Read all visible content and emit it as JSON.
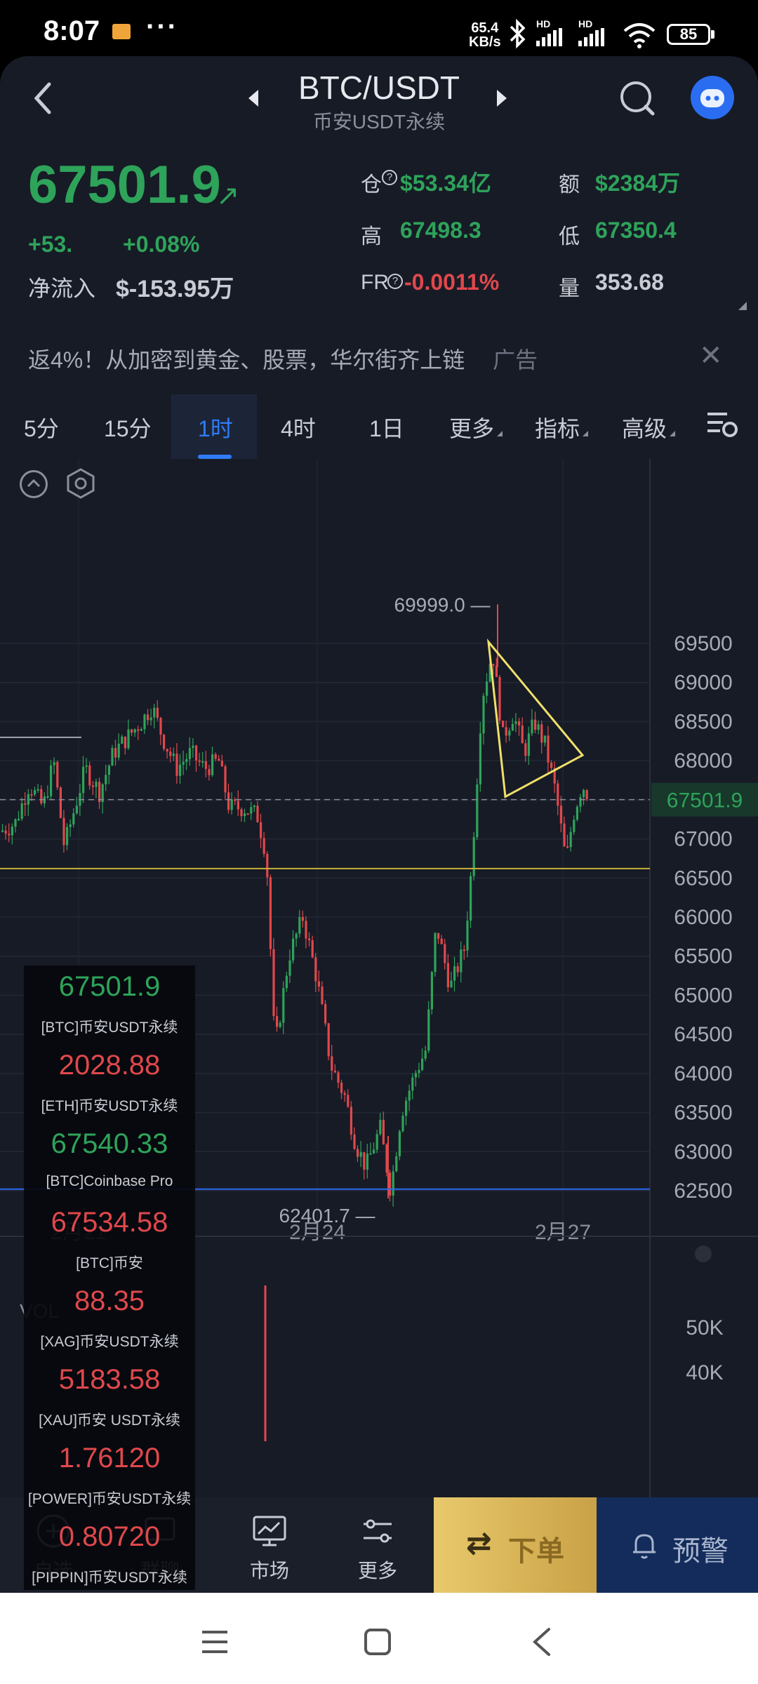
{
  "status_bar": {
    "time": "8:07",
    "more": "···",
    "net_speed_value": "65.4",
    "net_speed_unit": "KB/s",
    "sim1": "HD",
    "sim2": "HD",
    "battery": "85"
  },
  "header": {
    "pair": "BTC/USDT",
    "market": "币安USDT永续"
  },
  "price": {
    "last": "67501.9",
    "change": "+53.",
    "change_pct": "+0.08%",
    "inflow_label": "净流入",
    "inflow_value": "$-153.95万"
  },
  "stats": {
    "oi_label": "仓",
    "oi_value": "$53.34亿",
    "amount_label": "额",
    "amount_value": "$2384万",
    "high_label": "高",
    "high_value": "67498.3",
    "low_label": "低",
    "low_value": "67350.4",
    "fr_label": "FR",
    "fr_value": "-0.0011%",
    "vol_label": "量",
    "vol_value": "353.68"
  },
  "ad": {
    "text": "返4%！从加密到黄金、股票，华尔街齐上链",
    "tag": "广告"
  },
  "intervals": {
    "items": [
      "5分",
      "15分",
      "1时",
      "4时",
      "1日"
    ],
    "active": "1时",
    "more": "更多",
    "indicators": "指标",
    "advanced": "高级"
  },
  "chart_data": {
    "type": "candlestick",
    "interval": "1时",
    "y_ticks": [
      "69500",
      "69000",
      "68500",
      "68000",
      "67500",
      "67000",
      "66500",
      "66000",
      "65500",
      "65000",
      "64500",
      "64000",
      "63500",
      "63000",
      "62500"
    ],
    "ylim": [
      62300,
      70200
    ],
    "x_ticks": [
      "2月21",
      "2月24",
      "2月27"
    ],
    "current_price": "67501.9",
    "max_label": "69999.0",
    "min_label": "62401.7",
    "horizontal_lines": [
      66620,
      62520
    ],
    "drawing": "triangle",
    "volume": {
      "label": "VOL",
      "y_ticks": [
        "50K",
        "40K"
      ]
    }
  },
  "ticker_panel": [
    {
      "price": "67501.9",
      "name": "[BTC]币安USDT永续",
      "color": "#2ea35a"
    },
    {
      "price": "2028.88",
      "name": "[ETH]币安USDT永续",
      "color": "#e0484c"
    },
    {
      "price": "67540.33",
      "name": "[BTC]Coinbase Pro",
      "color": "#2ea35a"
    },
    {
      "price": "67534.58",
      "name": "[BTC]币安",
      "color": "#e0484c"
    },
    {
      "price": "88.35",
      "name": "[XAG]币安USDT永续",
      "color": "#e0484c"
    },
    {
      "price": "5183.58",
      "name": "[XAU]币安 USDT永续",
      "color": "#e0484c"
    },
    {
      "price": "1.76120",
      "name": "[POWER]币安USDT永续",
      "color": "#e0484c"
    },
    {
      "price": "0.80720",
      "name": "[PIPPIN]币安USDT永续",
      "color": "#e0484c"
    }
  ],
  "bottom_bar": {
    "watchlist": "自选",
    "chat": "群聊",
    "market": "市场",
    "more": "更多",
    "order": "下单",
    "alert": "预警"
  }
}
